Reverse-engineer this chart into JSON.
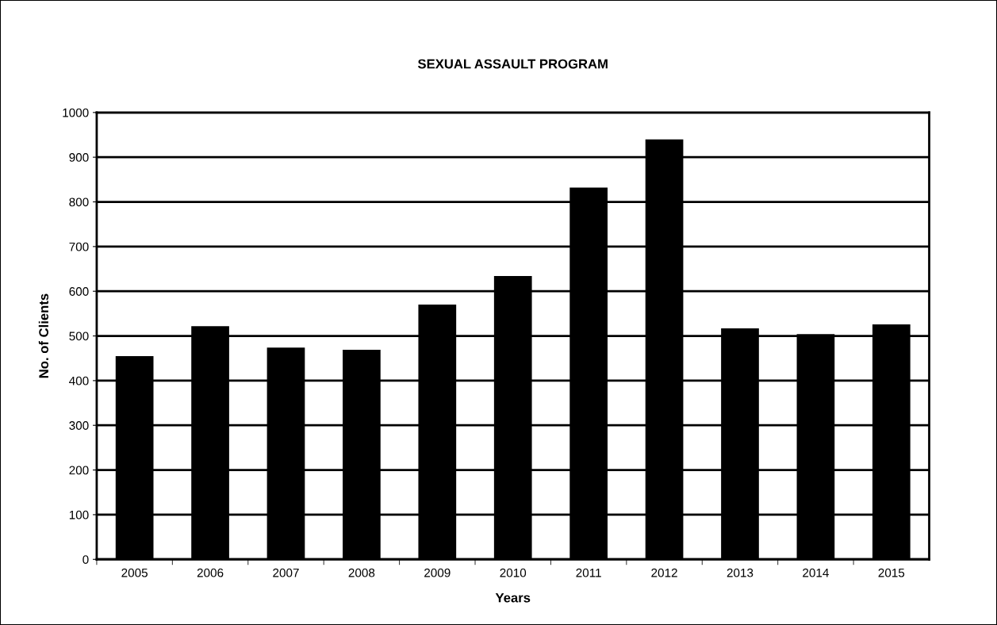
{
  "chart_data": {
    "type": "bar",
    "title": "SEXUAL ASSAULT PROGRAM",
    "xlabel": "Years",
    "ylabel": "No. of Clients",
    "categories": [
      "2005",
      "2006",
      "2007",
      "2008",
      "2009",
      "2010",
      "2011",
      "2012",
      "2013",
      "2014",
      "2015"
    ],
    "values": [
      455,
      522,
      474,
      469,
      570,
      634,
      832,
      940,
      517,
      504,
      526
    ],
    "color": "#000000",
    "ylim": [
      0,
      1000
    ],
    "yticks": [
      0,
      100,
      200,
      300,
      400,
      500,
      600,
      700,
      800,
      900,
      1000
    ],
    "grid": "y",
    "legend": false
  }
}
